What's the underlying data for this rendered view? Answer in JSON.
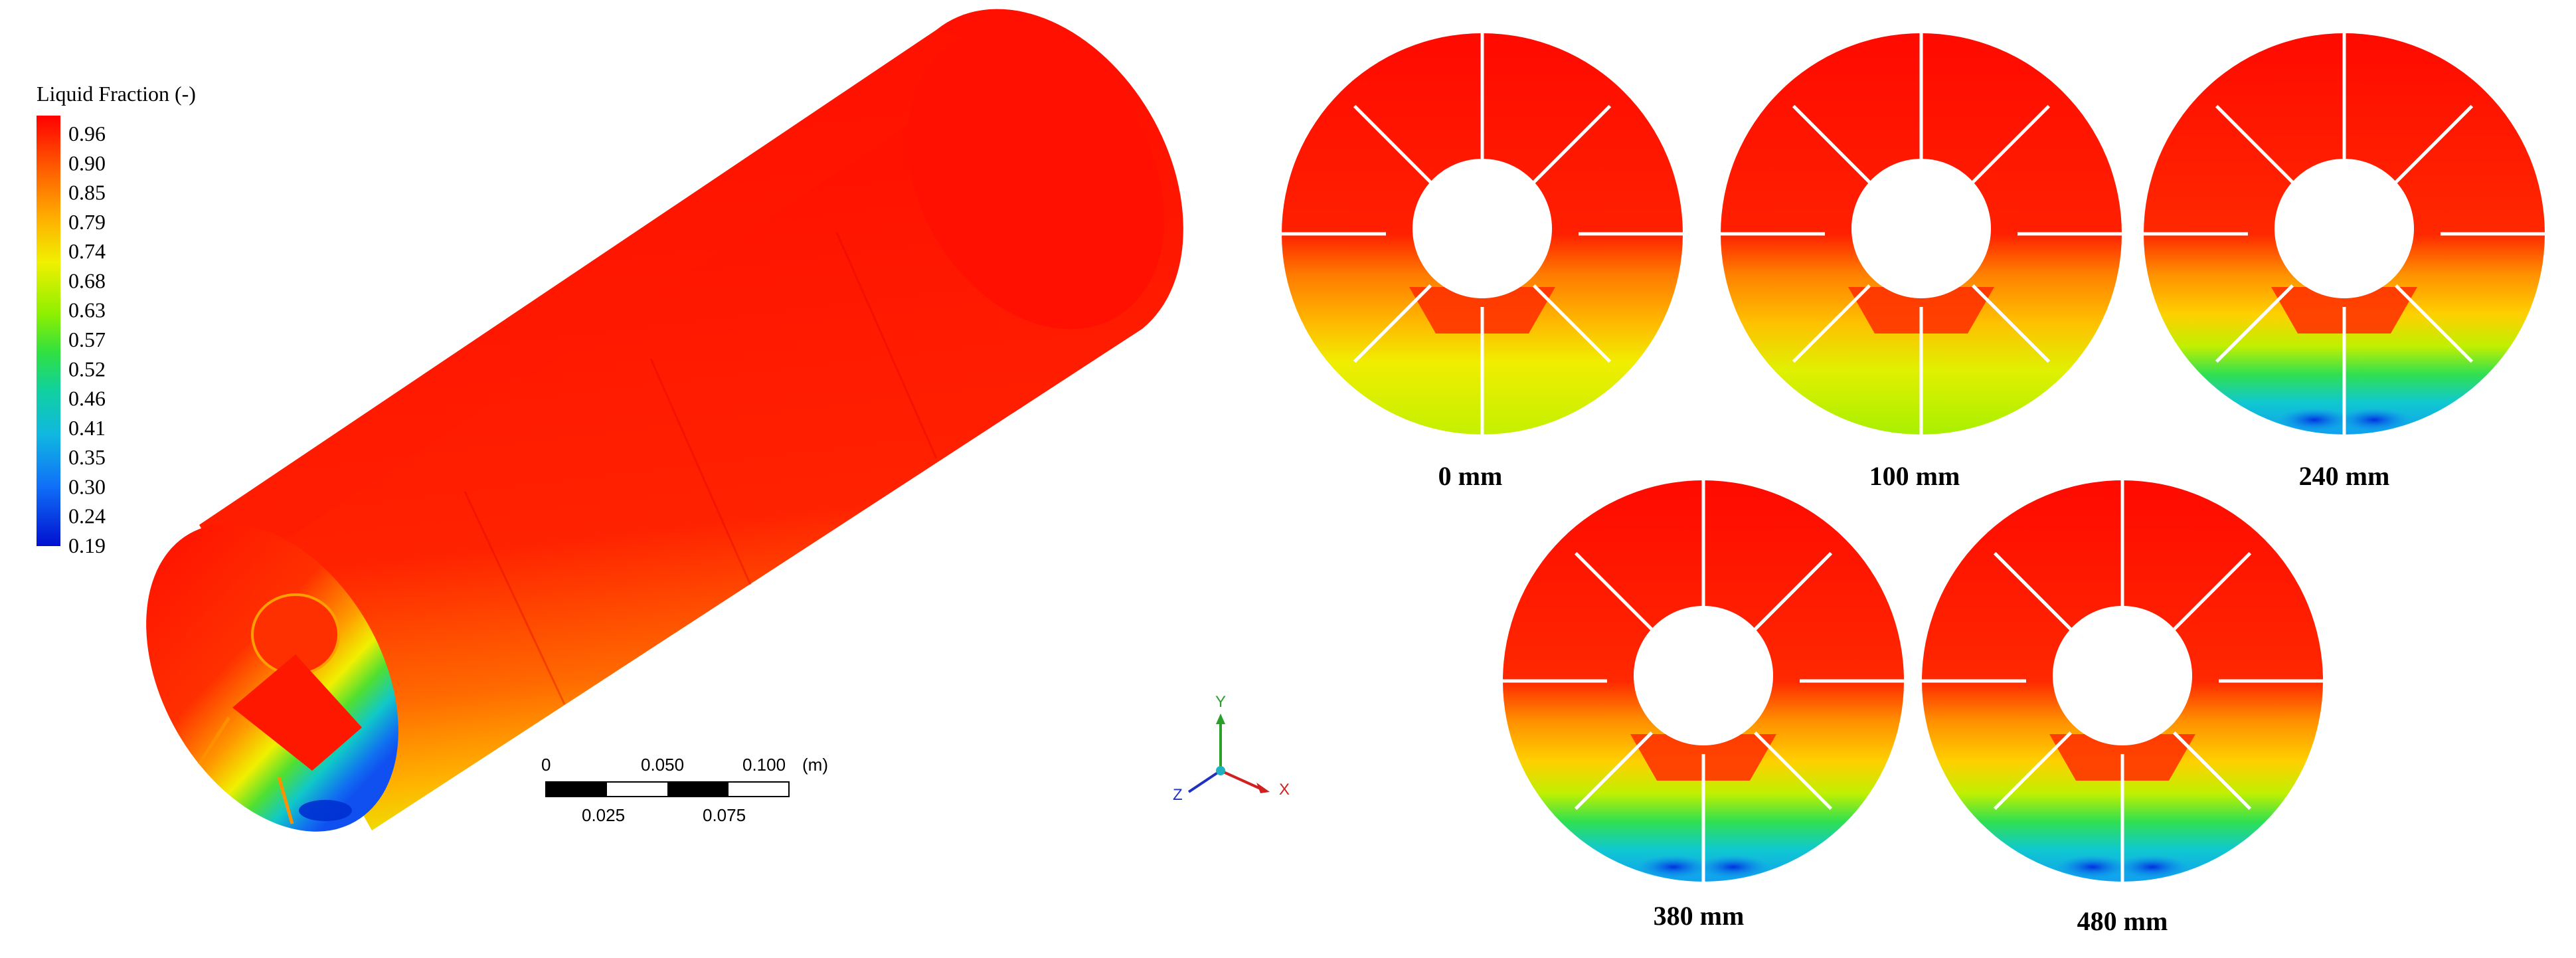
{
  "legend": {
    "title": "Liquid Fraction (-)",
    "ticks": [
      "0.96",
      "0.90",
      "0.85",
      "0.79",
      "0.74",
      "0.68",
      "0.63",
      "0.57",
      "0.52",
      "0.46",
      "0.41",
      "0.35",
      "0.30",
      "0.24",
      "0.19"
    ],
    "colors": [
      "#ff0000",
      "#ff3a00",
      "#ff7a00",
      "#ffb000",
      "#ffe100",
      "#d8ff00",
      "#9cf000",
      "#4ae020",
      "#20d070",
      "#10c8b0",
      "#10b0e0",
      "#1080f0",
      "#1050ff",
      "#0020f0",
      "#0000c8"
    ]
  },
  "scale_bar": {
    "top_labels": [
      "0",
      "0.050",
      "0.100"
    ],
    "unit": "(m)",
    "bottom_labels": [
      "0.025",
      "0.075"
    ]
  },
  "axes": {
    "x": "X",
    "y": "Y",
    "z": "Z"
  },
  "sections": [
    {
      "label": "0 mm",
      "bottom_color": "#c8f000",
      "blue_spots": false
    },
    {
      "label": "100 mm",
      "bottom_color": "#b8f000",
      "blue_spots": false
    },
    {
      "label": "240 mm",
      "bottom_color": "#10c8e0",
      "blue_spots": true
    },
    {
      "label": "380 mm",
      "bottom_color": "#10c8e0",
      "blue_spots": true
    },
    {
      "label": "480 mm",
      "bottom_color": "#10c8e0",
      "blue_spots": true
    }
  ]
}
